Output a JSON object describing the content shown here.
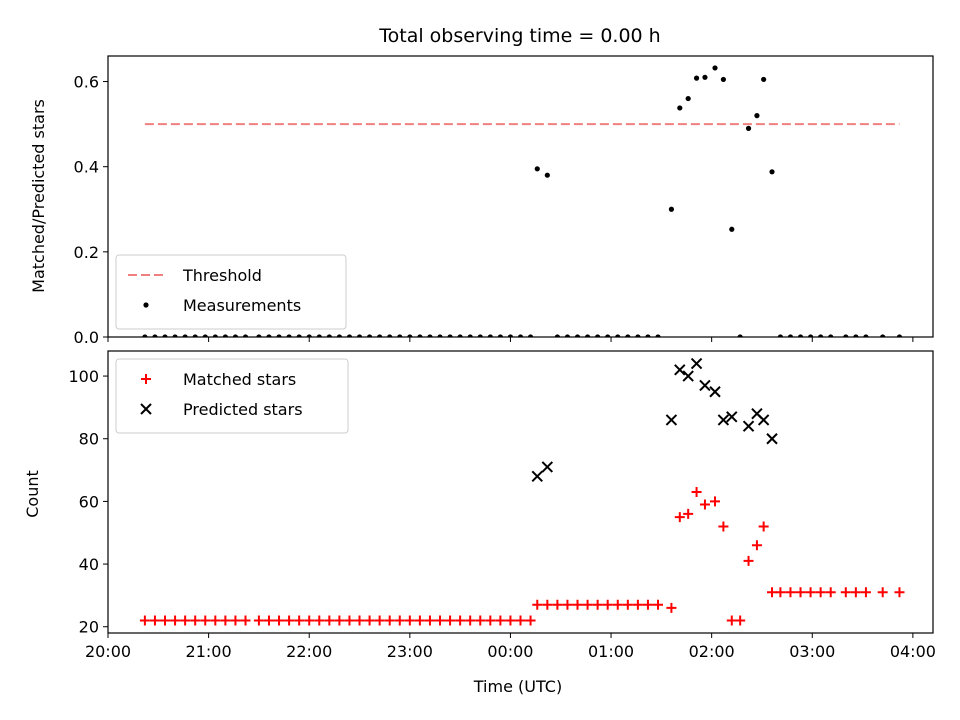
{
  "chart_data": [
    {
      "type": "scatter",
      "title": "Total observing time = 0.00 h",
      "ylabel": "Matched/Predicted stars",
      "xlabel": "",
      "xlim": [
        "20:00",
        "04:12"
      ],
      "ylim": [
        0,
        0.66
      ],
      "xticks": [
        "20:00",
        "21:00",
        "22:00",
        "23:00",
        "00:00",
        "01:00",
        "02:00",
        "03:00",
        "04:00"
      ],
      "yticks": [
        "0.0",
        "0.2",
        "0.4",
        "0.6"
      ],
      "legend_position": "lower-left",
      "threshold": {
        "name": "Threshold",
        "y": 0.5,
        "x_start": "20:22",
        "x_end": "03:52",
        "color": "#f08080",
        "style": "dashed"
      },
      "series": [
        {
          "name": "Measurements",
          "color": "#000000",
          "marker": "dot",
          "points": [
            [
              "20:22",
              0
            ],
            [
              "20:28",
              0
            ],
            [
              "20:34",
              0
            ],
            [
              "20:40",
              0
            ],
            [
              "20:46",
              0
            ],
            [
              "20:52",
              0
            ],
            [
              "20:58",
              0
            ],
            [
              "21:04",
              0
            ],
            [
              "21:10",
              0
            ],
            [
              "21:16",
              0
            ],
            [
              "21:22",
              0
            ],
            [
              "21:30",
              0
            ],
            [
              "21:36",
              0
            ],
            [
              "21:42",
              0
            ],
            [
              "21:48",
              0
            ],
            [
              "21:54",
              0
            ],
            [
              "22:00",
              0
            ],
            [
              "22:06",
              0
            ],
            [
              "22:12",
              0
            ],
            [
              "22:18",
              0
            ],
            [
              "22:24",
              0
            ],
            [
              "22:30",
              0
            ],
            [
              "22:36",
              0
            ],
            [
              "22:42",
              0
            ],
            [
              "22:48",
              0
            ],
            [
              "22:54",
              0
            ],
            [
              "23:00",
              0
            ],
            [
              "23:06",
              0
            ],
            [
              "23:12",
              0
            ],
            [
              "23:18",
              0
            ],
            [
              "23:24",
              0
            ],
            [
              "23:30",
              0
            ],
            [
              "23:36",
              0
            ],
            [
              "23:42",
              0
            ],
            [
              "23:48",
              0
            ],
            [
              "23:54",
              0
            ],
            [
              "00:00",
              0
            ],
            [
              "00:06",
              0
            ],
            [
              "00:12",
              0
            ],
            [
              "00:16",
              0.395
            ],
            [
              "00:22",
              0.38
            ],
            [
              "00:28",
              0
            ],
            [
              "00:34",
              0
            ],
            [
              "00:40",
              0
            ],
            [
              "00:46",
              0
            ],
            [
              "00:52",
              0
            ],
            [
              "00:58",
              0
            ],
            [
              "01:04",
              0
            ],
            [
              "01:10",
              0
            ],
            [
              "01:16",
              0
            ],
            [
              "01:22",
              0
            ],
            [
              "01:28",
              0
            ],
            [
              "01:36",
              0.3
            ],
            [
              "01:41",
              0.538
            ],
            [
              "01:46",
              0.56
            ],
            [
              "01:51",
              0.608
            ],
            [
              "01:56",
              0.61
            ],
            [
              "02:02",
              0.632
            ],
            [
              "02:07",
              0.605
            ],
            [
              "02:12",
              0.253
            ],
            [
              "02:17",
              0
            ],
            [
              "02:22",
              0.49
            ],
            [
              "02:27",
              0.52
            ],
            [
              "02:31",
              0.605
            ],
            [
              "02:36",
              0.388
            ],
            [
              "02:41",
              0
            ],
            [
              "02:47",
              0
            ],
            [
              "02:53",
              0
            ],
            [
              "02:59",
              0
            ],
            [
              "03:05",
              0
            ],
            [
              "03:11",
              0
            ],
            [
              "03:20",
              0
            ],
            [
              "03:26",
              0
            ],
            [
              "03:32",
              0
            ],
            [
              "03:42",
              0
            ],
            [
              "03:52",
              0
            ]
          ]
        }
      ]
    },
    {
      "type": "scatter",
      "title": "",
      "ylabel": "Count",
      "xlabel": "Time (UTC)",
      "xlim": [
        "20:00",
        "04:12"
      ],
      "ylim": [
        18,
        108
      ],
      "xticks": [
        "20:00",
        "21:00",
        "22:00",
        "23:00",
        "00:00",
        "01:00",
        "02:00",
        "03:00",
        "04:00"
      ],
      "yticks": [
        "20",
        "40",
        "60",
        "80",
        "100"
      ],
      "legend_position": "upper-left",
      "series": [
        {
          "name": "Matched stars",
          "color": "#ff0000",
          "marker": "plus",
          "points": [
            [
              "20:22",
              22
            ],
            [
              "20:28",
              22
            ],
            [
              "20:34",
              22
            ],
            [
              "20:40",
              22
            ],
            [
              "20:46",
              22
            ],
            [
              "20:52",
              22
            ],
            [
              "20:58",
              22
            ],
            [
              "21:04",
              22
            ],
            [
              "21:10",
              22
            ],
            [
              "21:16",
              22
            ],
            [
              "21:22",
              22
            ],
            [
              "21:30",
              22
            ],
            [
              "21:36",
              22
            ],
            [
              "21:42",
              22
            ],
            [
              "21:48",
              22
            ],
            [
              "21:54",
              22
            ],
            [
              "22:00",
              22
            ],
            [
              "22:06",
              22
            ],
            [
              "22:12",
              22
            ],
            [
              "22:18",
              22
            ],
            [
              "22:24",
              22
            ],
            [
              "22:30",
              22
            ],
            [
              "22:36",
              22
            ],
            [
              "22:42",
              22
            ],
            [
              "22:48",
              22
            ],
            [
              "22:54",
              22
            ],
            [
              "23:00",
              22
            ],
            [
              "23:06",
              22
            ],
            [
              "23:12",
              22
            ],
            [
              "23:18",
              22
            ],
            [
              "23:24",
              22
            ],
            [
              "23:30",
              22
            ],
            [
              "23:36",
              22
            ],
            [
              "23:42",
              22
            ],
            [
              "23:48",
              22
            ],
            [
              "23:54",
              22
            ],
            [
              "00:00",
              22
            ],
            [
              "00:06",
              22
            ],
            [
              "00:12",
              22
            ],
            [
              "00:16",
              27
            ],
            [
              "00:22",
              27
            ],
            [
              "00:28",
              27
            ],
            [
              "00:34",
              27
            ],
            [
              "00:40",
              27
            ],
            [
              "00:46",
              27
            ],
            [
              "00:52",
              27
            ],
            [
              "00:58",
              27
            ],
            [
              "01:04",
              27
            ],
            [
              "01:10",
              27
            ],
            [
              "01:16",
              27
            ],
            [
              "01:22",
              27
            ],
            [
              "01:28",
              27
            ],
            [
              "01:36",
              26
            ],
            [
              "01:41",
              55
            ],
            [
              "01:46",
              56
            ],
            [
              "01:51",
              63
            ],
            [
              "01:56",
              59
            ],
            [
              "02:02",
              60
            ],
            [
              "02:07",
              52
            ],
            [
              "02:12",
              22
            ],
            [
              "02:17",
              22
            ],
            [
              "02:22",
              41
            ],
            [
              "02:27",
              46
            ],
            [
              "02:31",
              52
            ],
            [
              "02:36",
              31
            ],
            [
              "02:41",
              31
            ],
            [
              "02:47",
              31
            ],
            [
              "02:53",
              31
            ],
            [
              "02:59",
              31
            ],
            [
              "03:05",
              31
            ],
            [
              "03:11",
              31
            ],
            [
              "03:20",
              31
            ],
            [
              "03:26",
              31
            ],
            [
              "03:32",
              31
            ],
            [
              "03:42",
              31
            ],
            [
              "03:52",
              31
            ]
          ]
        },
        {
          "name": "Predicted stars",
          "color": "#000000",
          "marker": "x",
          "points": [
            [
              "00:16",
              68
            ],
            [
              "00:22",
              71
            ],
            [
              "01:36",
              86
            ],
            [
              "01:41",
              102
            ],
            [
              "01:46",
              100
            ],
            [
              "01:51",
              104
            ],
            [
              "01:56",
              97
            ],
            [
              "02:02",
              95
            ],
            [
              "02:07",
              86
            ],
            [
              "02:12",
              87
            ],
            [
              "02:22",
              84
            ],
            [
              "02:27",
              88
            ],
            [
              "02:31",
              86
            ],
            [
              "02:36",
              80
            ]
          ]
        }
      ]
    }
  ]
}
